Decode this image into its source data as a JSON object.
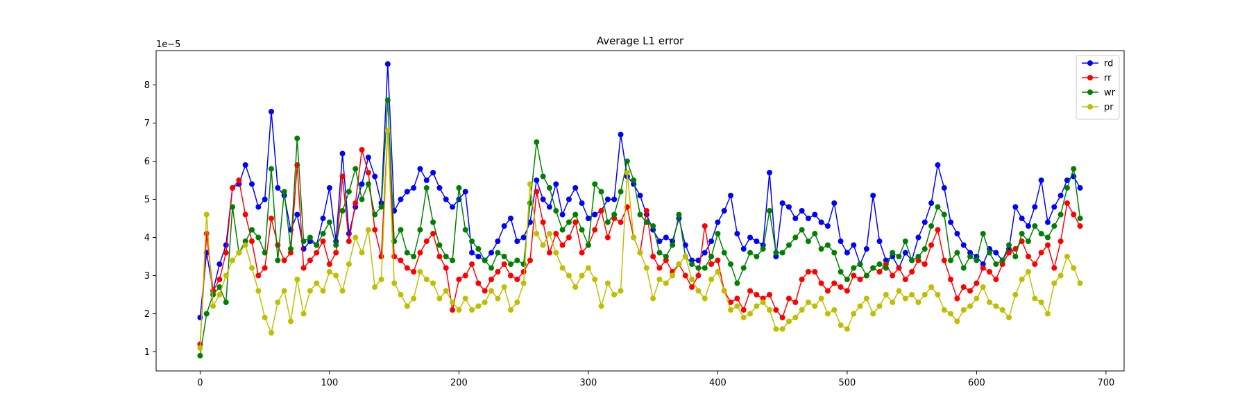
{
  "chart_data": {
    "type": "line",
    "title": "Average L1 error",
    "xlabel": "",
    "ylabel": "",
    "y_offset_label": "1e−5",
    "xlim": [
      -34,
      714
    ],
    "ylim": [
      0.5,
      8.9
    ],
    "x_ticks": [
      0,
      100,
      200,
      300,
      400,
      500,
      600,
      700
    ],
    "y_ticks": [
      1,
      2,
      3,
      4,
      5,
      6,
      7,
      8
    ],
    "grid": false,
    "legend_position": "top-right",
    "series": [
      {
        "name": "rd",
        "color": "#0000ff",
        "x": [
          0,
          5,
          10,
          15,
          20,
          25,
          30,
          35,
          40,
          45,
          50,
          55,
          60,
          65,
          70,
          75,
          80,
          85,
          90,
          95,
          100,
          105,
          110,
          115,
          120,
          125,
          130,
          135,
          140,
          145,
          150,
          155,
          160,
          165,
          170,
          175,
          180,
          185,
          190,
          195,
          200,
          205,
          210,
          215,
          220,
          225,
          230,
          235,
          240,
          245,
          250,
          255,
          260,
          265,
          270,
          275,
          280,
          285,
          290,
          295,
          300,
          305,
          310,
          315,
          320,
          325,
          330,
          335,
          340,
          345,
          350,
          355,
          360,
          365,
          370,
          375,
          380,
          385,
          390,
          395,
          400,
          405,
          410,
          415,
          420,
          425,
          430,
          435,
          440,
          445,
          450,
          455,
          460,
          465,
          470,
          475,
          480,
          485,
          490,
          495,
          500,
          505,
          510,
          515,
          520,
          525,
          530,
          535,
          540,
          545,
          550,
          555,
          560,
          565,
          570,
          575,
          580,
          585,
          590,
          595,
          600,
          605,
          610,
          615,
          620,
          625,
          630,
          635,
          640,
          645,
          650,
          655,
          660,
          665,
          670,
          675,
          680
        ],
        "values": [
          1.9,
          3.6,
          2.6,
          3.3,
          3.8,
          5.3,
          5.4,
          5.9,
          5.4,
          4.8,
          5.0,
          7.3,
          5.3,
          5.1,
          4.2,
          4.6,
          3.7,
          3.9,
          3.8,
          4.5,
          5.3,
          3.9,
          6.2,
          4.1,
          4.8,
          5.4,
          6.1,
          5.6,
          4.9,
          8.55,
          4.7,
          5.0,
          5.2,
          5.3,
          5.8,
          5.5,
          5.7,
          5.3,
          5.0,
          4.8,
          5.0,
          5.2,
          3.6,
          3.5,
          3.4,
          3.6,
          3.9,
          4.3,
          4.5,
          3.9,
          4.0,
          4.4,
          5.5,
          5.0,
          4.8,
          5.4,
          4.6,
          5.0,
          5.3,
          4.9,
          4.5,
          4.6,
          4.7,
          5.0,
          5.0,
          6.7,
          5.6,
          5.4,
          5.1,
          4.6,
          4.2,
          3.9,
          4.0,
          3.9,
          4.5,
          3.8,
          3.4,
          3.4,
          3.6,
          3.9,
          4.4,
          4.7,
          5.1,
          4.1,
          3.7,
          4.0,
          3.9,
          3.8,
          5.7,
          3.5,
          4.9,
          4.8,
          4.5,
          4.7,
          4.5,
          4.6,
          4.4,
          4.3,
          4.9,
          3.9,
          3.6,
          3.8,
          3.3,
          3.7,
          5.1,
          3.9,
          3.4,
          3.5,
          3.2,
          3.6,
          3.4,
          4.0,
          4.4,
          4.9,
          5.9,
          5.3,
          4.4,
          4.1,
          3.8,
          3.6,
          3.5,
          3.3,
          3.7,
          3.6,
          3.4,
          3.7,
          4.8,
          4.5,
          4.3,
          4.8,
          5.5,
          4.4,
          4.8,
          5.1,
          5.5,
          5.6,
          5.3
        ]
      },
      {
        "name": "rr",
        "color": "#ff0000",
        "x": [
          0,
          5,
          10,
          15,
          20,
          25,
          30,
          35,
          40,
          45,
          50,
          55,
          60,
          65,
          70,
          75,
          80,
          85,
          90,
          95,
          100,
          105,
          110,
          115,
          120,
          125,
          130,
          135,
          140,
          145,
          150,
          155,
          160,
          165,
          170,
          175,
          180,
          185,
          190,
          195,
          200,
          205,
          210,
          215,
          220,
          225,
          230,
          235,
          240,
          245,
          250,
          255,
          260,
          265,
          270,
          275,
          280,
          285,
          290,
          295,
          300,
          305,
          310,
          315,
          320,
          325,
          330,
          335,
          340,
          345,
          350,
          355,
          360,
          365,
          370,
          375,
          380,
          385,
          390,
          395,
          400,
          405,
          410,
          415,
          420,
          425,
          430,
          435,
          440,
          445,
          450,
          455,
          460,
          465,
          470,
          475,
          480,
          485,
          490,
          495,
          500,
          505,
          510,
          515,
          520,
          525,
          530,
          535,
          540,
          545,
          550,
          555,
          560,
          565,
          570,
          575,
          580,
          585,
          590,
          595,
          600,
          605,
          610,
          615,
          620,
          625,
          630,
          635,
          640,
          645,
          650,
          655,
          660,
          665,
          670,
          675,
          680
        ],
        "values": [
          1.2,
          4.1,
          2.6,
          2.9,
          3.6,
          5.3,
          5.5,
          4.6,
          3.9,
          3.0,
          3.2,
          4.5,
          3.8,
          3.4,
          3.6,
          5.9,
          3.2,
          3.4,
          3.6,
          3.9,
          3.3,
          3.6,
          5.6,
          3.9,
          4.9,
          6.3,
          5.7,
          4.2,
          3.5,
          6.8,
          3.5,
          3.4,
          3.2,
          3.1,
          3.6,
          3.9,
          4.1,
          3.5,
          3.2,
          2.1,
          2.9,
          3.0,
          3.3,
          2.8,
          2.6,
          2.9,
          3.1,
          3.3,
          3.0,
          2.9,
          3.1,
          3.4,
          5.2,
          4.4,
          3.6,
          4.1,
          3.8,
          4.0,
          4.4,
          3.6,
          3.8,
          4.2,
          4.7,
          4.0,
          4.5,
          4.4,
          4.8,
          4.0,
          3.6,
          4.7,
          3.5,
          3.2,
          3.4,
          3.1,
          3.3,
          3.0,
          2.7,
          3.0,
          4.3,
          3.3,
          3.4,
          2.6,
          2.3,
          2.4,
          2.1,
          2.6,
          2.5,
          2.4,
          2.5,
          2.1,
          1.9,
          2.4,
          2.3,
          2.9,
          3.1,
          3.1,
          2.8,
          2.6,
          2.8,
          2.7,
          2.6,
          3.0,
          2.9,
          3.0,
          3.2,
          3.1,
          3.3,
          3.0,
          3.2,
          2.9,
          3.1,
          3.4,
          3.3,
          3.8,
          4.2,
          3.4,
          2.9,
          2.4,
          2.7,
          2.6,
          2.8,
          3.2,
          3.1,
          2.9,
          3.3,
          3.6,
          3.7,
          3.9,
          3.5,
          3.3,
          3.6,
          3.8,
          3.2,
          3.9,
          4.9,
          4.6,
          4.3
        ]
      },
      {
        "name": "wr",
        "color": "#008000",
        "x": [
          0,
          5,
          10,
          15,
          20,
          25,
          30,
          35,
          40,
          45,
          50,
          55,
          60,
          65,
          70,
          75,
          80,
          85,
          90,
          95,
          100,
          105,
          110,
          115,
          120,
          125,
          130,
          135,
          140,
          145,
          150,
          155,
          160,
          165,
          170,
          175,
          180,
          185,
          190,
          195,
          200,
          205,
          210,
          215,
          220,
          225,
          230,
          235,
          240,
          245,
          250,
          255,
          260,
          265,
          270,
          275,
          280,
          285,
          290,
          295,
          300,
          305,
          310,
          315,
          320,
          325,
          330,
          335,
          340,
          345,
          350,
          355,
          360,
          365,
          370,
          375,
          380,
          385,
          390,
          395,
          400,
          405,
          410,
          415,
          420,
          425,
          430,
          435,
          440,
          445,
          450,
          455,
          460,
          465,
          470,
          475,
          480,
          485,
          490,
          495,
          500,
          505,
          510,
          515,
          520,
          525,
          530,
          535,
          540,
          545,
          550,
          555,
          560,
          565,
          570,
          575,
          580,
          585,
          590,
          595,
          600,
          605,
          610,
          615,
          620,
          625,
          630,
          635,
          640,
          645,
          650,
          655,
          660,
          665,
          670,
          675,
          680
        ],
        "values": [
          0.9,
          2.0,
          2.5,
          2.7,
          2.3,
          4.8,
          3.6,
          3.9,
          4.2,
          4.0,
          3.6,
          5.8,
          3.4,
          5.2,
          3.7,
          6.6,
          3.9,
          4.0,
          3.8,
          4.1,
          4.4,
          3.8,
          4.7,
          5.2,
          5.8,
          5.0,
          5.4,
          4.6,
          4.8,
          7.6,
          3.9,
          4.2,
          3.6,
          3.5,
          4.2,
          5.3,
          4.4,
          3.8,
          3.5,
          3.4,
          5.3,
          4.2,
          3.9,
          3.7,
          3.4,
          3.2,
          3.6,
          3.5,
          3.3,
          3.4,
          3.3,
          4.9,
          6.5,
          5.6,
          5.3,
          4.7,
          4.2,
          4.4,
          4.6,
          4.2,
          3.8,
          5.4,
          5.2,
          4.4,
          4.6,
          5.2,
          6.0,
          5.5,
          4.6,
          4.4,
          4.3,
          3.6,
          3.5,
          3.8,
          4.6,
          3.5,
          3.3,
          3.2,
          3.2,
          3.5,
          4.1,
          3.6,
          3.3,
          2.8,
          3.2,
          3.6,
          3.5,
          3.7,
          4.7,
          3.6,
          3.6,
          3.8,
          4.0,
          4.2,
          3.9,
          4.1,
          3.7,
          3.8,
          3.6,
          3.1,
          2.9,
          3.2,
          3.3,
          3.0,
          3.2,
          3.3,
          3.2,
          3.6,
          3.5,
          3.9,
          3.4,
          3.5,
          3.7,
          4.3,
          4.8,
          4.6,
          3.4,
          3.6,
          3.2,
          3.5,
          3.4,
          4.1,
          3.6,
          3.3,
          3.4,
          3.8,
          3.5,
          4.1,
          3.9,
          4.3,
          4.1,
          4.0,
          4.3,
          4.6,
          5.3,
          5.8,
          4.5
        ]
      },
      {
        "name": "pr",
        "color": "#bfbf00",
        "x": [
          0,
          5,
          10,
          15,
          20,
          25,
          30,
          35,
          40,
          45,
          50,
          55,
          60,
          65,
          70,
          75,
          80,
          85,
          90,
          95,
          100,
          105,
          110,
          115,
          120,
          125,
          130,
          135,
          140,
          145,
          150,
          155,
          160,
          165,
          170,
          175,
          180,
          185,
          190,
          195,
          200,
          205,
          210,
          215,
          220,
          225,
          230,
          235,
          240,
          245,
          250,
          255,
          260,
          265,
          270,
          275,
          280,
          285,
          290,
          295,
          300,
          305,
          310,
          315,
          320,
          325,
          330,
          335,
          340,
          345,
          350,
          355,
          360,
          365,
          370,
          375,
          380,
          385,
          390,
          395,
          400,
          405,
          410,
          415,
          420,
          425,
          430,
          435,
          440,
          445,
          450,
          455,
          460,
          465,
          470,
          475,
          480,
          485,
          490,
          495,
          500,
          505,
          510,
          515,
          520,
          525,
          530,
          535,
          540,
          545,
          550,
          555,
          560,
          565,
          570,
          575,
          580,
          585,
          590,
          595,
          600,
          605,
          610,
          615,
          620,
          625,
          630,
          635,
          640,
          645,
          650,
          655,
          660,
          665,
          670,
          675,
          680
        ],
        "values": [
          1.1,
          4.6,
          2.2,
          2.5,
          3.0,
          3.4,
          3.6,
          3.8,
          3.2,
          2.6,
          1.9,
          1.5,
          2.3,
          2.6,
          1.8,
          2.9,
          2.0,
          2.6,
          2.8,
          2.6,
          3.1,
          3.0,
          2.6,
          3.3,
          4.0,
          3.6,
          4.2,
          2.7,
          2.9,
          6.8,
          2.8,
          2.5,
          2.2,
          2.4,
          3.1,
          2.9,
          2.8,
          2.4,
          2.6,
          2.3,
          2.1,
          2.4,
          2.1,
          2.2,
          2.3,
          2.6,
          2.4,
          2.7,
          2.1,
          2.3,
          2.8,
          5.4,
          4.1,
          3.8,
          4.1,
          3.6,
          3.2,
          3.0,
          2.7,
          3.0,
          3.2,
          2.9,
          2.2,
          2.8,
          2.5,
          2.6,
          5.7,
          4.0,
          3.6,
          3.2,
          2.4,
          2.9,
          2.8,
          3.0,
          3.3,
          3.5,
          2.9,
          2.6,
          2.4,
          2.9,
          3.1,
          2.6,
          2.1,
          2.2,
          1.9,
          2.0,
          2.2,
          2.3,
          2.1,
          1.6,
          1.6,
          1.8,
          1.9,
          2.1,
          2.3,
          2.2,
          2.4,
          2.0,
          2.1,
          1.7,
          1.6,
          2.0,
          2.2,
          2.4,
          2.0,
          2.2,
          2.5,
          2.3,
          2.6,
          2.4,
          2.5,
          2.3,
          2.5,
          2.7,
          2.5,
          2.1,
          2.0,
          1.8,
          2.1,
          2.2,
          2.4,
          2.7,
          2.3,
          2.2,
          2.1,
          1.9,
          2.5,
          2.9,
          3.1,
          2.4,
          2.3,
          2.0,
          2.8,
          3.0,
          3.5,
          3.2,
          2.8
        ]
      }
    ]
  }
}
